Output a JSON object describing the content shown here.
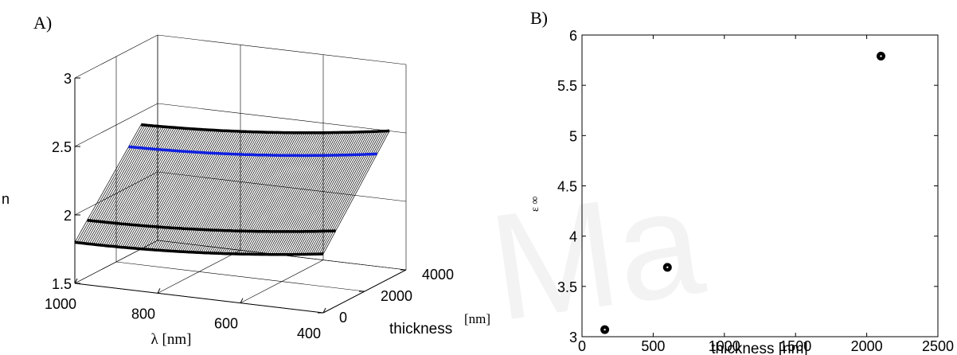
{
  "watermark": "Ma",
  "chart_data": [
    {
      "panel_label": "A)",
      "type": "surface",
      "x_axis": {
        "label": "λ [nm]",
        "ticks": [
          "1000",
          "800",
          "600",
          "400"
        ],
        "range": [
          1000,
          400
        ]
      },
      "y_axis": {
        "label": "thickness",
        "label_unit": "[nm]",
        "ticks": [
          "0",
          "2000",
          "4000"
        ],
        "range": [
          0,
          4000
        ]
      },
      "z_axis": {
        "label": "n",
        "ticks": [
          "1.5",
          "2",
          "2.5",
          "3"
        ],
        "range": [
          1.5,
          3
        ]
      },
      "grid": true,
      "highlight_colors": {
        "edge": "#000000",
        "mid": "#000000",
        "blue": "#1020e0"
      }
    },
    {
      "panel_label": "B)",
      "type": "scatter",
      "xlabel": "thickness [nm]",
      "ylabel": "ε ∞",
      "xlim": [
        0,
        2500
      ],
      "ylim": [
        3,
        6
      ],
      "x_ticks": [
        0,
        500,
        1000,
        1500,
        2000,
        2500
      ],
      "y_ticks": [
        3,
        3.5,
        4,
        4.5,
        5,
        5.5,
        6
      ],
      "points": [
        {
          "x": 160,
          "y": 3.07
        },
        {
          "x": 600,
          "y": 3.69
        },
        {
          "x": 2100,
          "y": 5.79
        }
      ],
      "grid": false,
      "marker_color": "#000000"
    }
  ]
}
